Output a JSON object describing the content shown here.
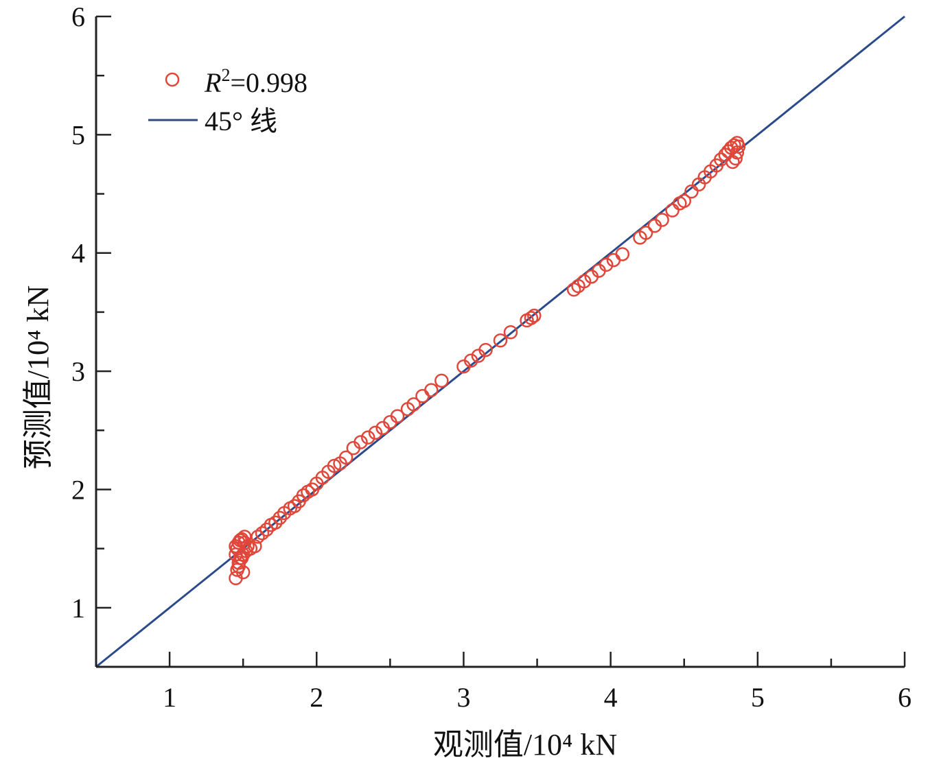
{
  "chart_data": {
    "type": "scatter",
    "title": "",
    "xlabel": "观测值/10⁴ kN",
    "ylabel": "预测值/10⁴ kN",
    "xlim": [
      0.5,
      6
    ],
    "ylim": [
      0.5,
      6
    ],
    "x_ticks": [
      "1",
      "2",
      "3",
      "4",
      "5",
      "6"
    ],
    "y_ticks": [
      "1",
      "2",
      "3",
      "4",
      "5",
      "6"
    ],
    "grid": false,
    "legend_position": "top-left",
    "legend": {
      "points_label_var": "R",
      "points_label_sup": "2",
      "points_label_value": "=0.998",
      "line_label": "45° 线"
    },
    "colors": {
      "points": "#e0473a",
      "line": "#2b4a8b",
      "axis": "#222222"
    },
    "series": [
      {
        "kind": "points",
        "x": [
          1.45,
          1.46,
          1.47,
          1.48,
          1.5,
          1.52,
          1.45,
          1.47,
          1.49,
          1.51,
          1.46,
          1.48,
          1.5,
          1.45,
          1.47,
          1.49,
          1.51,
          1.53,
          1.55,
          1.58,
          1.6,
          1.63,
          1.66,
          1.69,
          1.72,
          1.75,
          1.78,
          1.82,
          1.85,
          1.88,
          1.91,
          1.94,
          1.97,
          2.0,
          2.04,
          2.08,
          2.12,
          2.16,
          2.2,
          2.25,
          2.3,
          2.35,
          2.4,
          2.45,
          2.5,
          2.55,
          2.62,
          2.66,
          2.72,
          2.78,
          2.85,
          3.0,
          3.05,
          3.1,
          3.15,
          3.25,
          3.32,
          3.43,
          3.46,
          3.48,
          3.75,
          3.78,
          3.82,
          3.87,
          3.92,
          3.97,
          4.02,
          4.08,
          4.2,
          4.24,
          4.3,
          4.35,
          4.42,
          4.47,
          4.5,
          4.55,
          4.6,
          4.64,
          4.68,
          4.72,
          4.75,
          4.78,
          4.8,
          4.82,
          4.84,
          4.86,
          4.87,
          4.85,
          4.83,
          4.86
        ],
        "y": [
          1.25,
          1.32,
          1.38,
          1.42,
          1.45,
          1.48,
          1.52,
          1.55,
          1.58,
          1.6,
          1.5,
          1.57,
          1.3,
          1.45,
          1.35,
          1.42,
          1.55,
          1.52,
          1.5,
          1.52,
          1.6,
          1.63,
          1.66,
          1.7,
          1.72,
          1.76,
          1.8,
          1.84,
          1.86,
          1.9,
          1.95,
          1.98,
          2.0,
          2.05,
          2.1,
          2.15,
          2.2,
          2.22,
          2.27,
          2.35,
          2.4,
          2.44,
          2.48,
          2.52,
          2.57,
          2.62,
          2.68,
          2.72,
          2.79,
          2.84,
          2.92,
          3.04,
          3.09,
          3.13,
          3.18,
          3.26,
          3.33,
          3.43,
          3.45,
          3.47,
          3.69,
          3.72,
          3.76,
          3.8,
          3.85,
          3.9,
          3.94,
          3.99,
          4.13,
          4.17,
          4.23,
          4.28,
          4.36,
          4.42,
          4.44,
          4.52,
          4.58,
          4.64,
          4.69,
          4.74,
          4.79,
          4.83,
          4.86,
          4.89,
          4.91,
          4.93,
          4.9,
          4.8,
          4.77,
          4.85
        ]
      },
      {
        "kind": "line",
        "x": [
          0.5,
          6
        ],
        "y": [
          0.5,
          6
        ]
      }
    ]
  }
}
